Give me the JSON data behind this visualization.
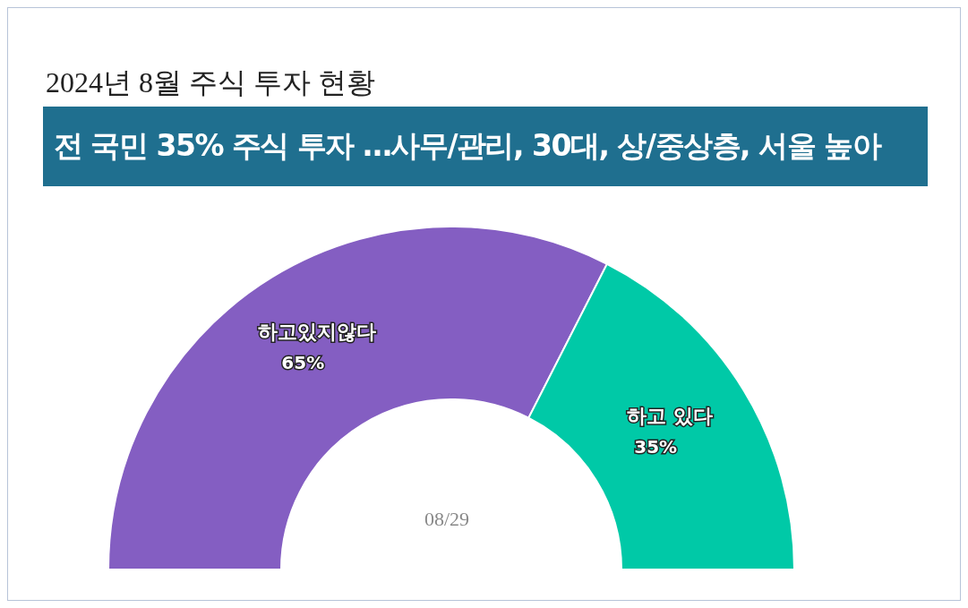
{
  "chart_data": {
    "type": "donut",
    "title": "2024년 8월 주식 투자 현황",
    "subtitle": "전 국민 35% 주식 투자 …사무/관리, 30대, 상/중상층, 서울 높아",
    "categories": [
      "하고있지않다",
      "하고 있다"
    ],
    "values": [
      65,
      35
    ],
    "value_labels": [
      "65%",
      "35%"
    ],
    "colors": [
      "#845ec2",
      "#00c9a7"
    ],
    "annotations": [
      "08/29"
    ]
  }
}
